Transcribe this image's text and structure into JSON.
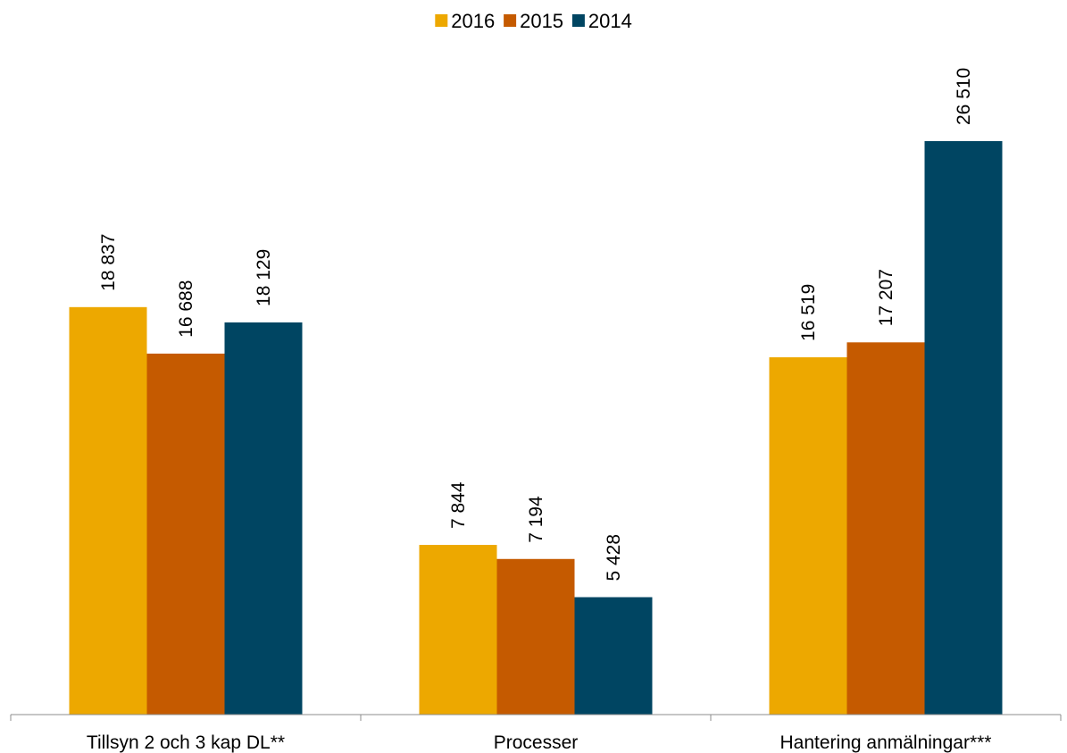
{
  "chart_data": {
    "type": "bar",
    "categories": [
      "Tillsyn 2 och 3 kap DL**",
      "Processer",
      "Hantering anmälningar***"
    ],
    "series": [
      {
        "name": "2016",
        "values": [
          18837,
          7844,
          16519
        ],
        "labels": [
          "18 837",
          "7 844",
          "16 519"
        ],
        "color": "#EDA800"
      },
      {
        "name": "2015",
        "values": [
          16688,
          7194,
          17207
        ],
        "labels": [
          "16 688",
          "7 194",
          "17 207"
        ],
        "color": "#C55A00"
      },
      {
        "name": "2014",
        "values": [
          18129,
          5428,
          26510
        ],
        "labels": [
          "18 129",
          "5 428",
          "26 510"
        ],
        "color": "#004562"
      }
    ],
    "ylim": [
      0,
      26510
    ],
    "grid": false,
    "legend_position": "top-center"
  }
}
